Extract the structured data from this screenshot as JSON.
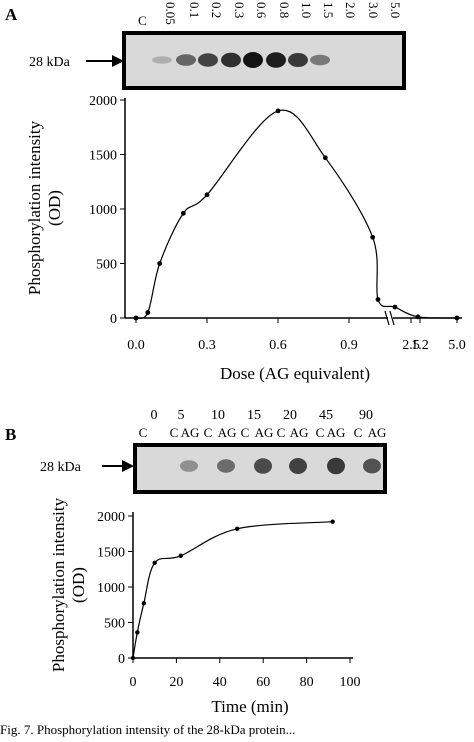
{
  "panel_a": {
    "letter": "A",
    "marker": "28 kDa",
    "lanes": [
      "C",
      "0.05",
      "0.1",
      "0.2",
      "0.3",
      "0.6",
      "0.8",
      "1.0",
      "1.5",
      "2.0",
      "3.0",
      "5.0"
    ],
    "band_intensity": [
      0.0,
      0.15,
      0.55,
      0.75,
      0.85,
      1.0,
      0.95,
      0.8,
      0.45,
      0.0,
      0.0,
      0.0
    ],
    "ylabel_line1": "Phosphorylation intensity",
    "ylabel_line2": "(OD)",
    "xlabel": "Dose (AG equivalent)",
    "x_ticks": [
      "0.0",
      "0.3",
      "0.6",
      "0.9",
      "1.2",
      "1.5",
      "2.5",
      "5.0"
    ],
    "y_ticks": [
      "0",
      "500",
      "1000",
      "1500",
      "2000"
    ]
  },
  "panel_b": {
    "letter": "B",
    "marker": "28 kDa",
    "time_labels": [
      "0",
      "5",
      "10",
      "15",
      "20",
      "45",
      "90"
    ],
    "lane_labels": [
      "C",
      "C",
      "AG",
      "C",
      "AG",
      "C",
      "AG",
      "C",
      "AG",
      "C",
      "AG",
      "C",
      "AG"
    ],
    "ylabel_line1": "Phosphorylation intensity",
    "ylabel_line2": "(OD)",
    "xlabel": "Time (min)",
    "x_ticks": [
      "0",
      "20",
      "40",
      "60",
      "80",
      "100"
    ],
    "y_ticks": [
      "0",
      "500",
      "1000",
      "1500",
      "2000"
    ]
  },
  "chart_data": [
    {
      "type": "line",
      "panel": "A",
      "xlabel": "Dose (AG equivalent)",
      "ylabel": "Phosphorylation intensity (OD)",
      "x_axis_break": "between 1.5 and 2.5",
      "x_ticks": [
        "0.0",
        "0.3",
        "0.6",
        "0.9",
        "1.2",
        "1.5",
        "2.5",
        "5.0"
      ],
      "ylim": [
        0,
        2000
      ],
      "series": [
        {
          "x": [
            0.0,
            0.05,
            0.1,
            0.2,
            0.3,
            0.6,
            0.8,
            1.0,
            1.5,
            2.0,
            3.0,
            5.0
          ],
          "y": [
            0,
            50,
            500,
            960,
            1130,
            1900,
            1470,
            740,
            170,
            100,
            10,
            0
          ]
        }
      ],
      "grid": false
    },
    {
      "type": "line",
      "panel": "B",
      "xlabel": "Time (min)",
      "ylabel": "Phosphorylation intensity (OD)",
      "xlim": [
        0,
        100
      ],
      "ylim": [
        0,
        2000
      ],
      "series": [
        {
          "x": [
            0,
            2,
            5,
            10,
            22,
            48,
            92
          ],
          "y": [
            0,
            360,
            770,
            1340,
            1440,
            1820,
            1920
          ]
        }
      ],
      "grid": false
    }
  ],
  "caption": "Fig. 7. Phosphorylation intensity of the 28-kDa protein..."
}
